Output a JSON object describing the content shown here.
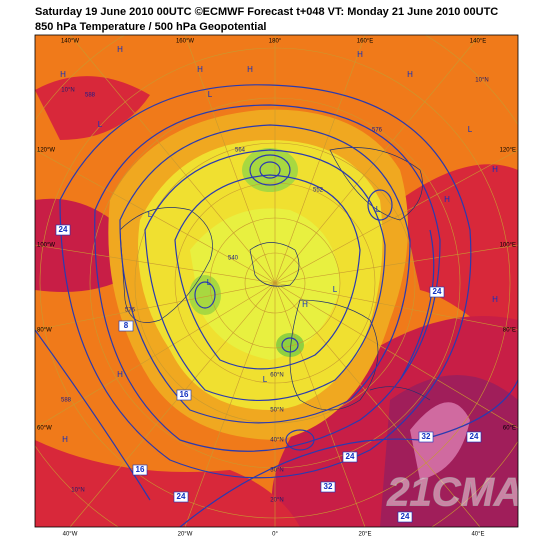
{
  "header": {
    "title": "Saturday 19 June 2010 00UTC ©ECMWF Forecast t+048 VT: Monday 21 June 2010 00UTC",
    "subtitle": "850 hPa Temperature / 500 hPa Geopotential"
  },
  "map": {
    "longitude_labels_top": [
      "140°W",
      "160°W",
      "180°",
      "160°E",
      "140°E"
    ],
    "longitude_labels_left": [
      "120°W",
      "100°W",
      "80°W",
      "60°W"
    ],
    "longitude_labels_right": [
      "120°E",
      "100°E",
      "80°E",
      "60°E"
    ],
    "longitude_labels_bottom": [
      "40°W",
      "20°W",
      "0°",
      "20°E",
      "40°E"
    ],
    "latitude_labels": [
      "10°N",
      "10°N",
      "30°N",
      "40°N",
      "50°N",
      "60°N",
      "20°N",
      "10°N"
    ],
    "temperature_labels": [
      "24",
      "24",
      "16",
      "24",
      "24",
      "32",
      "32",
      "24",
      "16",
      "24",
      "8"
    ],
    "geopotential_labels": [
      "588",
      "576",
      "564",
      "552",
      "540",
      "588",
      "576"
    ],
    "pressure_centers": [
      "H",
      "H",
      "L",
      "H",
      "L",
      "H",
      "L",
      "H",
      "L",
      "H",
      "L",
      "H",
      "H",
      "L",
      "H",
      "L",
      "H",
      "L",
      "H",
      "H"
    ],
    "watermark": "21CMA"
  }
}
